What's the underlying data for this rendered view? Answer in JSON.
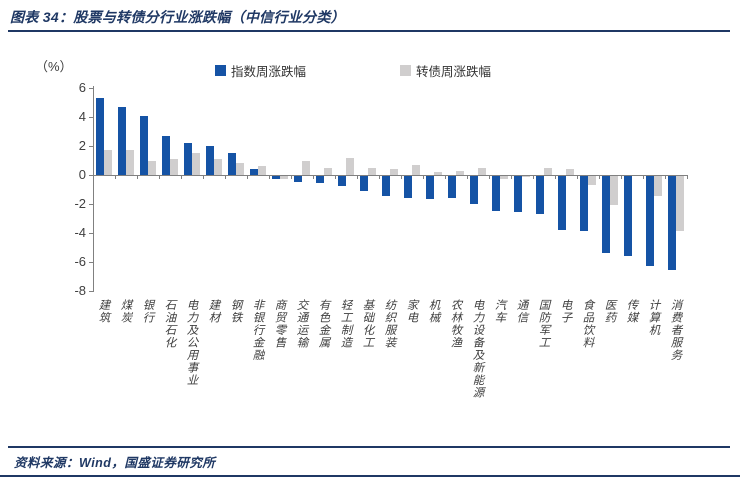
{
  "header": {
    "title": "图表 34：股票与转债分行业涨跌幅（中信行业分类）"
  },
  "footer": {
    "source": "资料来源：Wind，国盛证券研究所"
  },
  "chart_data": {
    "type": "bar",
    "title": "股票与转债分行业涨跌幅（中信行业分类）",
    "unit_label": "（%）",
    "grid": false,
    "legend_position": "top",
    "ylim": [
      -8,
      6
    ],
    "yticks": [
      6,
      4,
      2,
      0,
      -2,
      -4,
      -6,
      -8
    ],
    "categories": [
      "建筑",
      "煤炭",
      "银行",
      "石油石化",
      "电力及公用事业",
      "建材",
      "钢铁",
      "非银行金融",
      "商贸零售",
      "交通运输",
      "有色金属",
      "轻工制造",
      "基础化工",
      "纺织服装",
      "家电",
      "机械",
      "农林牧渔",
      "电力设备及新能源",
      "汽车",
      "通信",
      "国防军工",
      "电子",
      "食品饮料",
      "医药",
      "传媒",
      "计算机",
      "消费者服务"
    ],
    "series": [
      {
        "name": "指数周涨跌幅",
        "color": "#1553A5",
        "values": [
          5.3,
          4.7,
          4.1,
          2.7,
          2.2,
          2.0,
          1.5,
          0.4,
          -0.2,
          -0.4,
          -0.5,
          -0.7,
          -1.0,
          -1.4,
          -1.5,
          -1.6,
          -1.5,
          -1.9,
          -2.4,
          -2.5,
          -2.6,
          -3.7,
          -3.8,
          -5.3,
          -5.5,
          -6.2,
          -6.5
        ]
      },
      {
        "name": "转债周涨跌幅",
        "color": "#D0CECE",
        "values": [
          1.7,
          1.7,
          1.0,
          1.1,
          1.5,
          1.1,
          0.8,
          0.6,
          -0.2,
          1.0,
          0.5,
          1.2,
          0.5,
          0.4,
          0.7,
          0.2,
          0.3,
          0.5,
          -0.2,
          -0.1,
          0.5,
          0.4,
          -0.6,
          -2.0,
          0.0,
          -1.4,
          -3.8
        ]
      }
    ]
  }
}
